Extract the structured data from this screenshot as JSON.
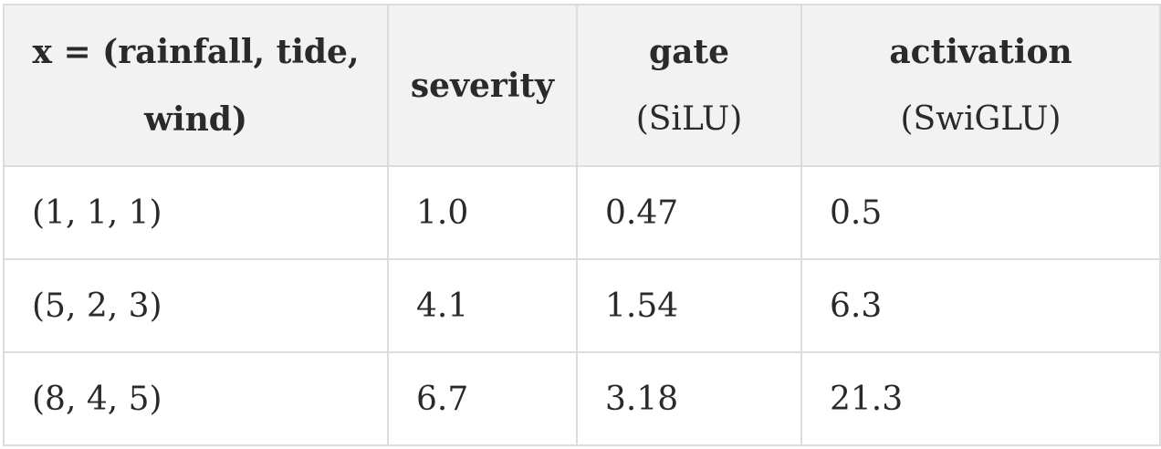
{
  "table": {
    "headers": [
      {
        "line1": "x = (rainfall, tide,",
        "line2": "wind)"
      },
      {
        "line1": "severity",
        "line2": ""
      },
      {
        "line1": "gate",
        "line2": "(SiLU)"
      },
      {
        "line1": "activation",
        "line2": "(SwiGLU)"
      }
    ],
    "rows": [
      [
        "(1, 1, 1)",
        "1.0",
        "0.47",
        "0.5"
      ],
      [
        "(5, 2, 3)",
        "4.1",
        "1.54",
        "6.3"
      ],
      [
        "(8, 4, 5)",
        "6.7",
        "3.18",
        "21.3"
      ]
    ]
  }
}
